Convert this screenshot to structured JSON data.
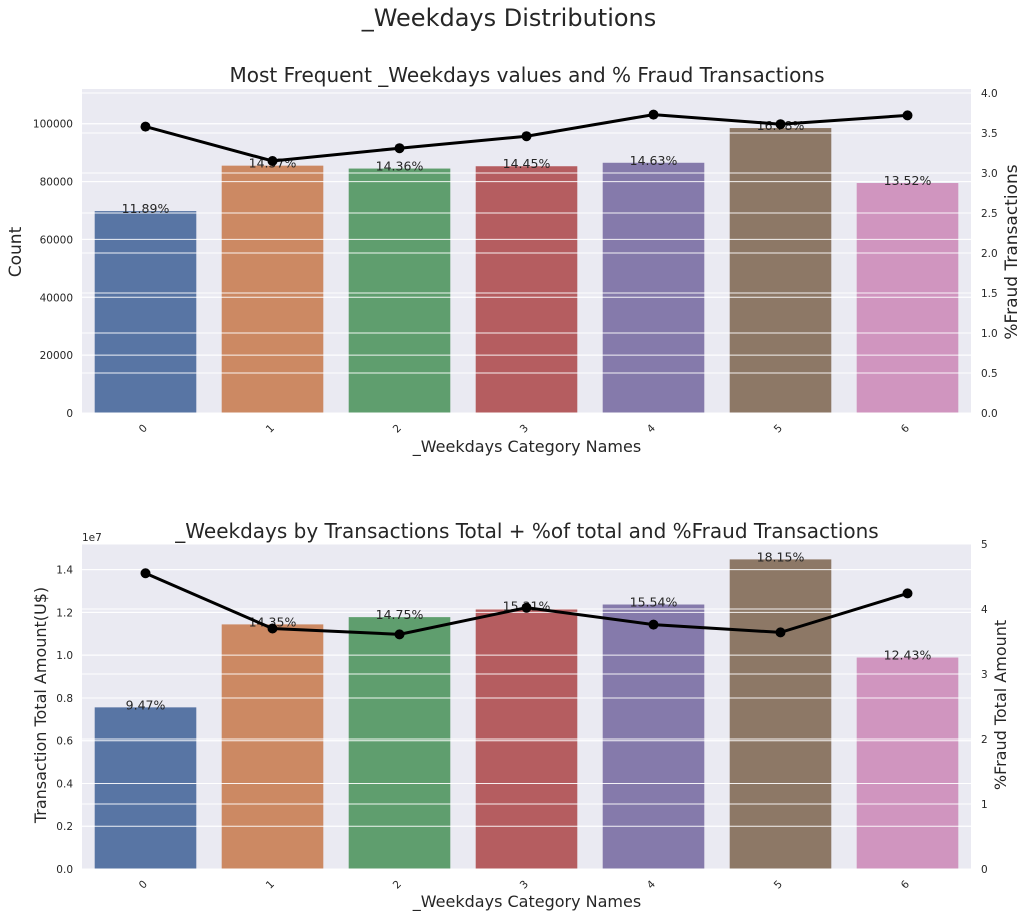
{
  "figure_title": "_Weekdays Distributions",
  "chart_data": [
    {
      "type": "bar",
      "title": "Most Frequent _Weekdays values and % Fraud Transactions",
      "xlabel": "_Weekdays Category Names",
      "ylabel": "Count",
      "y2label": "%Fraud Transactions",
      "categories": [
        "0",
        "1",
        "2",
        "3",
        "4",
        "5",
        "6"
      ],
      "values": [
        69800,
        85500,
        84500,
        85300,
        86500,
        98500,
        79500
      ],
      "bar_labels": [
        "11.89%",
        "14.57%",
        "14.36%",
        "14.45%",
        "14.63%",
        "16.78%",
        "13.52%"
      ],
      "line_values": [
        3.58,
        3.15,
        3.31,
        3.46,
        3.73,
        3.61,
        3.72
      ],
      "ylim": [
        0,
        112000
      ],
      "yticks": [
        0,
        20000,
        40000,
        60000,
        80000,
        100000
      ],
      "ytick_labels": [
        "0",
        "20000",
        "40000",
        "60000",
        "80000",
        "100000"
      ],
      "y2lim": [
        0,
        4.05
      ],
      "y2ticks": [
        0,
        0.5,
        1.0,
        1.5,
        2.0,
        2.5,
        3.0,
        3.5,
        4.0
      ],
      "y2tick_labels": [
        "0.0",
        "0.5",
        "1.0",
        "1.5",
        "2.0",
        "2.5",
        "3.0",
        "3.5",
        "4.0"
      ],
      "y_offset_label": "",
      "colors": [
        "#5875a4",
        "#cc8963",
        "#5f9e6e",
        "#b55d60",
        "#857aab",
        "#8d7866",
        "#d095bf"
      ],
      "grid": true
    },
    {
      "type": "bar",
      "title": "_Weekdays by Transactions Total + %of total and %Fraud Transactions",
      "xlabel": "_Weekdays Category Names",
      "ylabel": "Transaction Total Amount(U$)",
      "y2label": "%Fraud Total Amount",
      "categories": [
        "0",
        "1",
        "2",
        "3",
        "4",
        "5",
        "6"
      ],
      "values": [
        7560000,
        11440000,
        11780000,
        12180000,
        12370000,
        14480000,
        9890000
      ],
      "bar_labels": [
        "9.47%",
        "14.35%",
        "14.75%",
        "15.31%",
        "15.54%",
        "18.15%",
        "12.43%"
      ],
      "line_values": [
        4.55,
        3.7,
        3.61,
        4.02,
        3.76,
        3.64,
        4.24
      ],
      "ylim": [
        0,
        15200000
      ],
      "yticks": [
        0,
        2000000,
        4000000,
        6000000,
        8000000,
        10000000,
        12000000,
        14000000
      ],
      "ytick_labels": [
        "0.0",
        "0.2",
        "0.4",
        "0.6",
        "0.8",
        "1.0",
        "1.2",
        "1.4"
      ],
      "y2lim": [
        0,
        5
      ],
      "y2ticks": [
        0,
        1,
        2,
        3,
        4,
        5
      ],
      "y2tick_labels": [
        "0",
        "1",
        "2",
        "3",
        "4",
        "5"
      ],
      "y_offset_label": "1e7",
      "colors": [
        "#5875a4",
        "#cc8963",
        "#5f9e6e",
        "#b55d60",
        "#857aab",
        "#8d7866",
        "#d095bf"
      ],
      "grid": true
    }
  ]
}
